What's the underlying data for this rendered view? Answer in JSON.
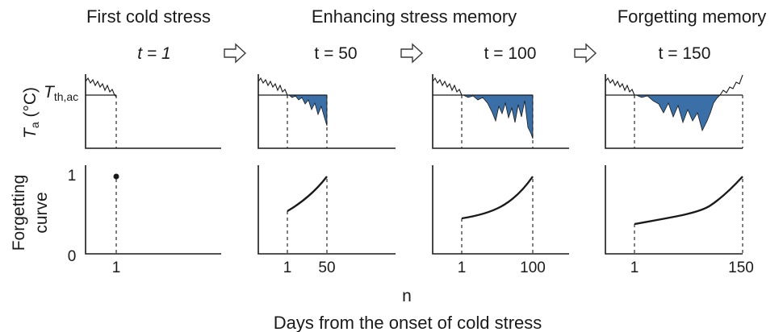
{
  "colors": {
    "fill": "#3a6fa8",
    "ink": "#1a1a1a"
  },
  "panels": [
    {
      "heading": "First cold stress",
      "t_label": "t = 1",
      "ticks": [
        "1"
      ],
      "days": 1,
      "dot": true
    },
    {
      "heading": "Enhancing stress memory",
      "t_label": "t = 50",
      "ticks": [
        "1",
        "50"
      ],
      "days": 50,
      "dot": false
    },
    {
      "heading": "",
      "t_label": "t = 100",
      "ticks": [
        "1",
        "100"
      ],
      "days": 100,
      "dot": false
    },
    {
      "heading": "Forgetting memory",
      "t_label": "t = 150",
      "ticks": [
        "1",
        "150"
      ],
      "days": 150,
      "dot": false
    }
  ],
  "top_axis": {
    "label_main": "T",
    "label_sub": "a",
    "label_unit": " (°C)",
    "threshold_main": "T",
    "threshold_sub": "th,ac"
  },
  "bottom_axis": {
    "label_line1": "Forgetting",
    "label_line2": "curve",
    "tick_top": "1",
    "tick_bottom": "0"
  },
  "x_axis": {
    "symbol": "n",
    "caption": "Days from the onset of cold stress"
  },
  "icons": {
    "arrow": "right-arrow-icon"
  }
}
